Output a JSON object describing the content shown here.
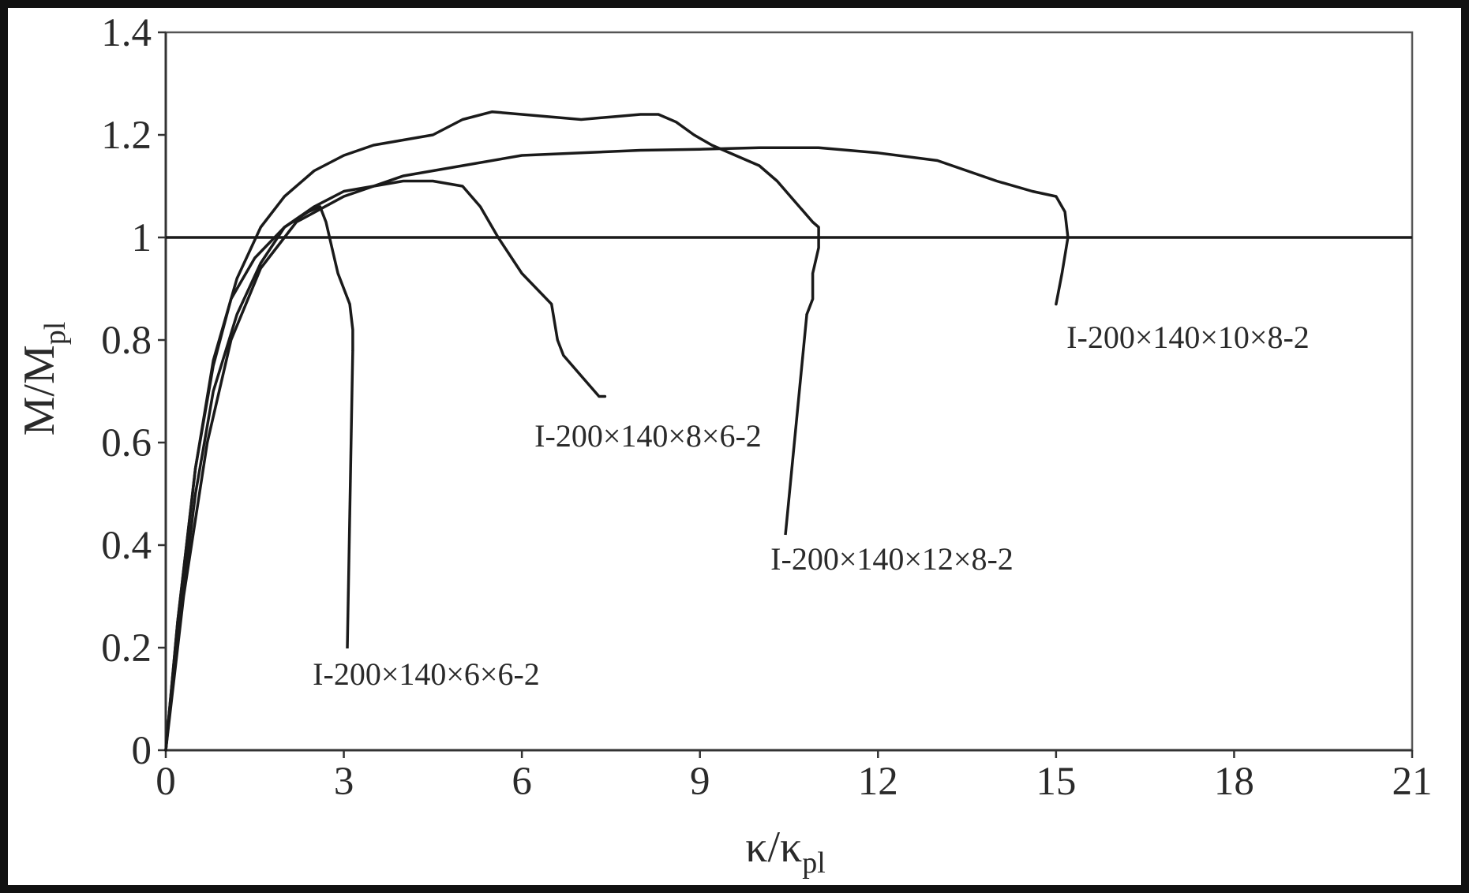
{
  "chart_data": {
    "type": "line",
    "title": "",
    "xlabel": {
      "main": "κ/κ",
      "sub": "pl"
    },
    "ylabel": {
      "main": "M/M",
      "sub": "pl"
    },
    "xlim": [
      0,
      21
    ],
    "ylim": [
      0,
      1.4
    ],
    "xticks": [
      "0",
      "3",
      "6",
      "9",
      "12",
      "15",
      "18",
      "21"
    ],
    "yticks": [
      "0",
      "0.2",
      "0.4",
      "0.6",
      "0.8",
      "1",
      "1.2",
      "1.4"
    ],
    "reference_line": {
      "y": 1.0
    },
    "grid": false,
    "colors": {
      "line": "#1a1a1a",
      "frame": "#111111",
      "plot_bg": "#ffffff"
    },
    "series": [
      {
        "name": "I-200×140×6×6-2",
        "points": [
          [
            0,
            0
          ],
          [
            0.2,
            0.25
          ],
          [
            0.5,
            0.55
          ],
          [
            0.8,
            0.75
          ],
          [
            1.1,
            0.88
          ],
          [
            1.5,
            0.96
          ],
          [
            2.0,
            1.02
          ],
          [
            2.4,
            1.05
          ],
          [
            2.6,
            1.06
          ],
          [
            2.7,
            1.03
          ],
          [
            2.8,
            0.98
          ],
          [
            2.9,
            0.93
          ],
          [
            3.0,
            0.9
          ],
          [
            3.1,
            0.87
          ],
          [
            3.15,
            0.82
          ],
          [
            3.15,
            0.78
          ]
        ]
      },
      {
        "name": "I-200×140×8×6-2",
        "points": [
          [
            0,
            0
          ],
          [
            0.2,
            0.22
          ],
          [
            0.5,
            0.5
          ],
          [
            0.8,
            0.7
          ],
          [
            1.2,
            0.85
          ],
          [
            1.6,
            0.95
          ],
          [
            2.0,
            1.02
          ],
          [
            2.5,
            1.06
          ],
          [
            3.0,
            1.09
          ],
          [
            3.5,
            1.1
          ],
          [
            4.0,
            1.11
          ],
          [
            4.5,
            1.11
          ],
          [
            5.0,
            1.1
          ],
          [
            5.3,
            1.06
          ],
          [
            5.6,
            1.0
          ],
          [
            6.0,
            0.93
          ],
          [
            6.5,
            0.87
          ],
          [
            6.6,
            0.8
          ],
          [
            6.7,
            0.77
          ],
          [
            7.0,
            0.73
          ],
          [
            7.3,
            0.69
          ],
          [
            7.4,
            0.69
          ]
        ]
      },
      {
        "name": "I-200×140×12×8-2",
        "points": [
          [
            0,
            0
          ],
          [
            0.2,
            0.25
          ],
          [
            0.5,
            0.55
          ],
          [
            0.8,
            0.76
          ],
          [
            1.2,
            0.92
          ],
          [
            1.6,
            1.02
          ],
          [
            2.0,
            1.08
          ],
          [
            2.5,
            1.13
          ],
          [
            3.0,
            1.16
          ],
          [
            3.5,
            1.18
          ],
          [
            4.0,
            1.19
          ],
          [
            4.5,
            1.2
          ],
          [
            5.0,
            1.23
          ],
          [
            5.5,
            1.245
          ],
          [
            6.0,
            1.24
          ],
          [
            6.5,
            1.235
          ],
          [
            7.0,
            1.23
          ],
          [
            7.5,
            1.235
          ],
          [
            8.0,
            1.24
          ],
          [
            8.3,
            1.24
          ],
          [
            8.6,
            1.225
          ],
          [
            8.9,
            1.2
          ],
          [
            9.2,
            1.18
          ],
          [
            9.6,
            1.16
          ],
          [
            10.0,
            1.14
          ],
          [
            10.3,
            1.11
          ],
          [
            10.6,
            1.07
          ],
          [
            10.9,
            1.03
          ],
          [
            11.0,
            1.02
          ],
          [
            11.0,
            0.98
          ],
          [
            10.9,
            0.93
          ],
          [
            10.9,
            0.88
          ],
          [
            10.8,
            0.85
          ]
        ]
      },
      {
        "name": "I-200×140×10×8-2",
        "points": [
          [
            0,
            0
          ],
          [
            0.3,
            0.3
          ],
          [
            0.7,
            0.6
          ],
          [
            1.1,
            0.8
          ],
          [
            1.6,
            0.94
          ],
          [
            2.2,
            1.03
          ],
          [
            3.0,
            1.08
          ],
          [
            4.0,
            1.12
          ],
          [
            5.0,
            1.14
          ],
          [
            6.0,
            1.16
          ],
          [
            7.0,
            1.165
          ],
          [
            8.0,
            1.17
          ],
          [
            9.0,
            1.172
          ],
          [
            10.0,
            1.175
          ],
          [
            11.0,
            1.175
          ],
          [
            12.0,
            1.165
          ],
          [
            13.0,
            1.15
          ],
          [
            14.0,
            1.11
          ],
          [
            14.6,
            1.09
          ],
          [
            15.0,
            1.08
          ],
          [
            15.15,
            1.05
          ],
          [
            15.2,
            1.0
          ],
          [
            15.1,
            0.93
          ],
          [
            15.0,
            0.87
          ]
        ]
      }
    ]
  }
}
